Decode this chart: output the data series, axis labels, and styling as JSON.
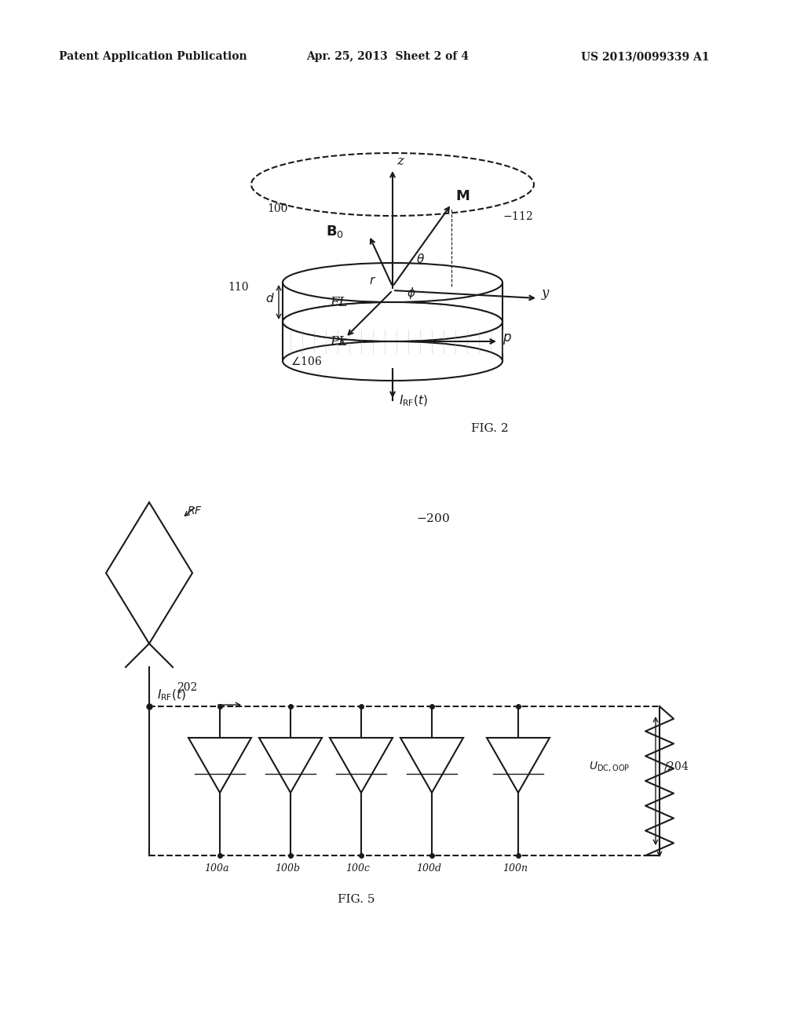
{
  "bg_color": "#ffffff",
  "header_left": "Patent Application Publication",
  "header_mid": "Apr. 25, 2013  Sheet 2 of 4",
  "header_right": "US 2013/0099339 A1",
  "fig2_caption": "FIG. 2",
  "fig5_caption": "FIG. 5",
  "label_100": "100",
  "label_110": "110",
  "label_112": "112",
  "label_106": "106",
  "label_200": "200",
  "label_202": "202",
  "label_204": "204",
  "label_100a": "100a",
  "label_100b": "100b",
  "label_100c": "100c",
  "label_100d": "100d",
  "label_100n": "100n"
}
